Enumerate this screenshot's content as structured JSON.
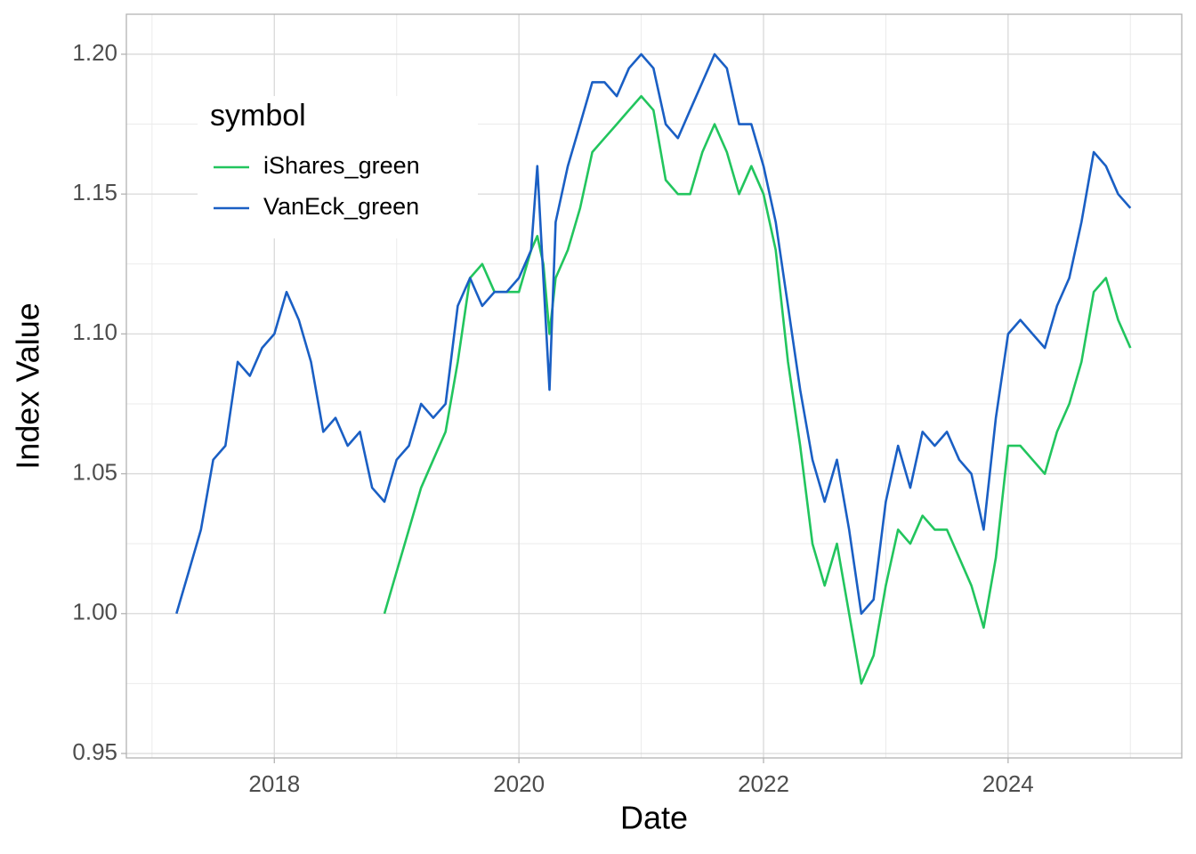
{
  "chart_data": {
    "type": "line",
    "x_label": "Date",
    "y_label": "Index Value",
    "legend_title": "symbol",
    "legend": "top-left",
    "grid": true,
    "xlim": [
      2016.79,
      2025.42
    ],
    "xticks": [
      2018,
      2020,
      2022,
      2024
    ],
    "ylim": [
      0.9484,
      1.2143
    ],
    "yticks": [
      0.95,
      {
        "value": 1.0,
        "label": "1.00"
      },
      1.05,
      {
        "value": 1.1,
        "label": "1.10"
      },
      1.15,
      {
        "value": 1.2,
        "label": "1.20"
      }
    ],
    "x": [
      2017.2,
      2017.3,
      2017.4,
      2017.5,
      2017.6,
      2017.7,
      2017.8,
      2017.9,
      2018.0,
      2018.1,
      2018.2,
      2018.3,
      2018.4,
      2018.5,
      2018.6,
      2018.7,
      2018.8,
      2018.9,
      2019.0,
      2019.1,
      2019.2,
      2019.3,
      2019.4,
      2019.5,
      2019.6,
      2019.7,
      2019.8,
      2019.9,
      2020.0,
      2020.1,
      2020.15,
      2020.2,
      2020.25,
      2020.3,
      2020.4,
      2020.5,
      2020.6,
      2020.7,
      2020.8,
      2020.9,
      2021.0,
      2021.1,
      2021.2,
      2021.3,
      2021.4,
      2021.5,
      2021.6,
      2021.7,
      2021.8,
      2021.9,
      2022.0,
      2022.1,
      2022.2,
      2022.3,
      2022.4,
      2022.5,
      2022.6,
      2022.7,
      2022.8,
      2022.9,
      2023.0,
      2023.1,
      2023.2,
      2023.3,
      2023.4,
      2023.5,
      2023.6,
      2023.7,
      2023.8,
      2023.9,
      2024.0,
      2024.1,
      2024.2,
      2024.3,
      2024.4,
      2024.5,
      2024.6,
      2024.7,
      2024.8,
      2024.9,
      2025.0
    ],
    "series": [
      {
        "name": "iShares_green",
        "color": "#22c55e",
        "values": [
          null,
          null,
          null,
          null,
          null,
          null,
          null,
          null,
          null,
          null,
          null,
          null,
          null,
          null,
          null,
          null,
          null,
          1.0,
          1.015,
          1.03,
          1.045,
          1.055,
          1.065,
          1.09,
          1.12,
          1.125,
          1.115,
          1.115,
          1.115,
          1.13,
          1.135,
          1.125,
          1.1,
          1.12,
          1.13,
          1.145,
          1.165,
          1.17,
          1.175,
          1.18,
          1.185,
          1.18,
          1.155,
          1.15,
          1.15,
          1.165,
          1.175,
          1.165,
          1.15,
          1.16,
          1.15,
          1.13,
          1.09,
          1.06,
          1.025,
          1.01,
          1.025,
          1.0,
          0.975,
          0.985,
          1.01,
          1.03,
          1.025,
          1.035,
          1.03,
          1.03,
          1.02,
          1.01,
          0.995,
          1.02,
          1.06,
          1.06,
          1.055,
          1.05,
          1.065,
          1.075,
          1.09,
          1.115,
          1.12,
          1.105,
          1.095
        ]
      },
      {
        "name": "VanEck_green",
        "color": "#1a5fc4",
        "values": [
          1.0,
          1.015,
          1.03,
          1.055,
          1.06,
          1.09,
          1.085,
          1.095,
          1.1,
          1.115,
          1.105,
          1.09,
          1.065,
          1.07,
          1.06,
          1.065,
          1.045,
          1.04,
          1.055,
          1.06,
          1.075,
          1.07,
          1.075,
          1.11,
          1.12,
          1.11,
          1.115,
          1.115,
          1.12,
          1.13,
          1.16,
          1.12,
          1.08,
          1.14,
          1.16,
          1.175,
          1.19,
          1.19,
          1.185,
          1.195,
          1.2,
          1.195,
          1.175,
          1.17,
          1.18,
          1.19,
          1.2,
          1.195,
          1.175,
          1.175,
          1.16,
          1.14,
          1.11,
          1.08,
          1.055,
          1.04,
          1.055,
          1.03,
          1.0,
          1.005,
          1.04,
          1.06,
          1.045,
          1.065,
          1.06,
          1.065,
          1.055,
          1.05,
          1.03,
          1.07,
          1.1,
          1.105,
          1.1,
          1.095,
          1.11,
          1.12,
          1.14,
          1.165,
          1.16,
          1.15,
          1.145
        ]
      }
    ]
  }
}
